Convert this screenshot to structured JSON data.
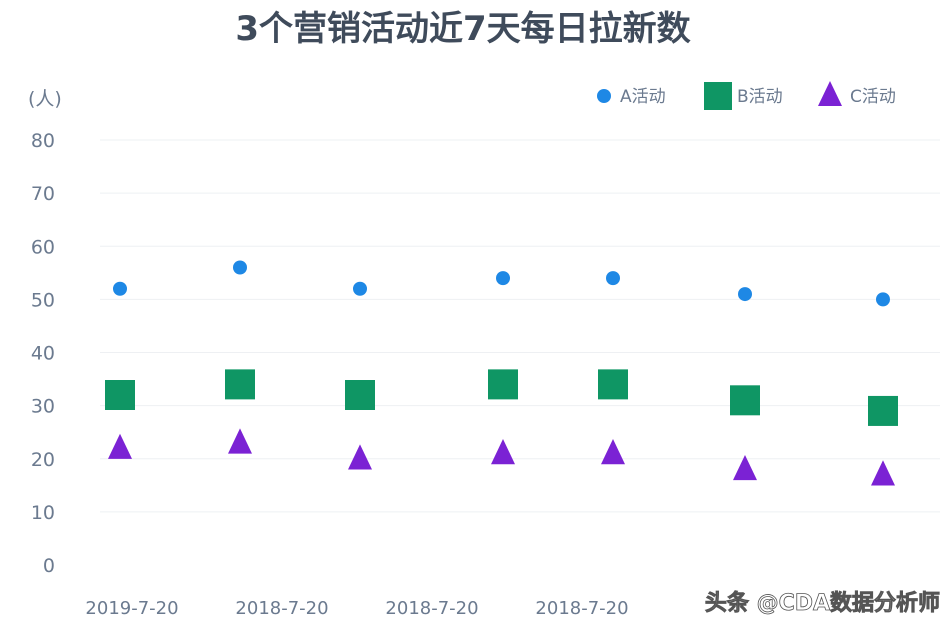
{
  "chart_data": {
    "type": "scatter",
    "title": "3个营销活动近7天每日拉新数",
    "ylabel": "(人)",
    "xlabel": "",
    "ylim": [
      0,
      80
    ],
    "yticks": [
      0,
      10,
      20,
      30,
      40,
      50,
      60,
      70,
      80
    ],
    "categories": [
      "2019-7-20",
      "2018-7-20",
      "2018-7-20",
      "2018-7-20",
      "2018-7-20",
      "2018-7-20",
      "2018-7-20"
    ],
    "visible_tick_labels": [
      "2019-7-20",
      "2018-7-20",
      "2018-7-20",
      "2018-7-20"
    ],
    "legend_position": "top-right",
    "grid": true,
    "series": [
      {
        "name": "A活动",
        "marker": "circle",
        "color": "#1e88e5",
        "values": [
          52,
          56,
          52,
          54,
          54,
          51,
          50
        ]
      },
      {
        "name": "B活动",
        "marker": "square",
        "color": "#0f9664",
        "values": [
          32,
          34,
          32,
          34,
          34,
          31,
          29
        ]
      },
      {
        "name": "C活动",
        "marker": "triangle",
        "color": "#7b22d4",
        "values": [
          22,
          23,
          20,
          21,
          21,
          18,
          17
        ]
      }
    ]
  },
  "watermark": "头条 @CDA数据分析师"
}
